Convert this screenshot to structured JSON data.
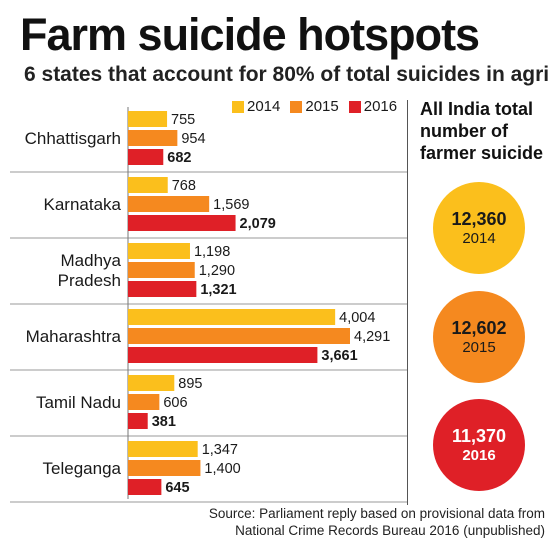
{
  "title": "Farm suicide hotspots",
  "subtitle": "6 states that account for 80% of total suicides in agri",
  "legend": [
    {
      "label": "2014",
      "color": "#fbbf1c"
    },
    {
      "label": "2015",
      "color": "#f5891f"
    },
    {
      "label": "2016",
      "color": "#df2027"
    }
  ],
  "chart_data": {
    "type": "bar",
    "orientation": "horizontal",
    "categories": [
      "Chhattisgarh",
      "Karnataka",
      "Madhya Pradesh",
      "Maharashtra",
      "Tamil Nadu",
      "Teleganga"
    ],
    "category_lines": [
      [
        "Chhattisgarh"
      ],
      [
        "Karnataka"
      ],
      [
        "Madhya",
        "Pradesh"
      ],
      [
        "Maharashtra"
      ],
      [
        "Tamil Nadu"
      ],
      [
        "Teleganga"
      ]
    ],
    "series": [
      {
        "name": "2014",
        "color": "#fbbf1c",
        "values": [
          755,
          768,
          1198,
          4004,
          895,
          1347
        ],
        "labels": [
          "755",
          "768",
          "1,198",
          "4,004",
          "895",
          "1,347"
        ]
      },
      {
        "name": "2015",
        "color": "#f5891f",
        "values": [
          954,
          1569,
          1290,
          4291,
          606,
          1400
        ],
        "labels": [
          "954",
          "1,569",
          "1,290",
          "4,291",
          "606",
          "1,400"
        ]
      },
      {
        "name": "2016",
        "color": "#df2027",
        "values": [
          682,
          2079,
          1321,
          3661,
          381,
          645
        ],
        "labels": [
          "682",
          "2,079",
          "1,321",
          "3,661",
          "381",
          "645"
        ]
      }
    ],
    "xlim": [
      0,
      4291
    ]
  },
  "sidebar": {
    "title": "All India total number of farmer suicide",
    "totals": [
      {
        "value": "12,360",
        "year": "2014",
        "color": "#fbbf1c",
        "text_color": "#1a1a1a"
      },
      {
        "value": "12,602",
        "year": "2015",
        "color": "#f5891f",
        "text_color": "#1a1a1a"
      },
      {
        "value": "11,370",
        "year": "2016",
        "color": "#df2027",
        "text_color": "#ffffff"
      }
    ]
  },
  "source": "Source: Parliament reply based on provisional data from National Crime Records Bureau 2016 (unpublished)"
}
